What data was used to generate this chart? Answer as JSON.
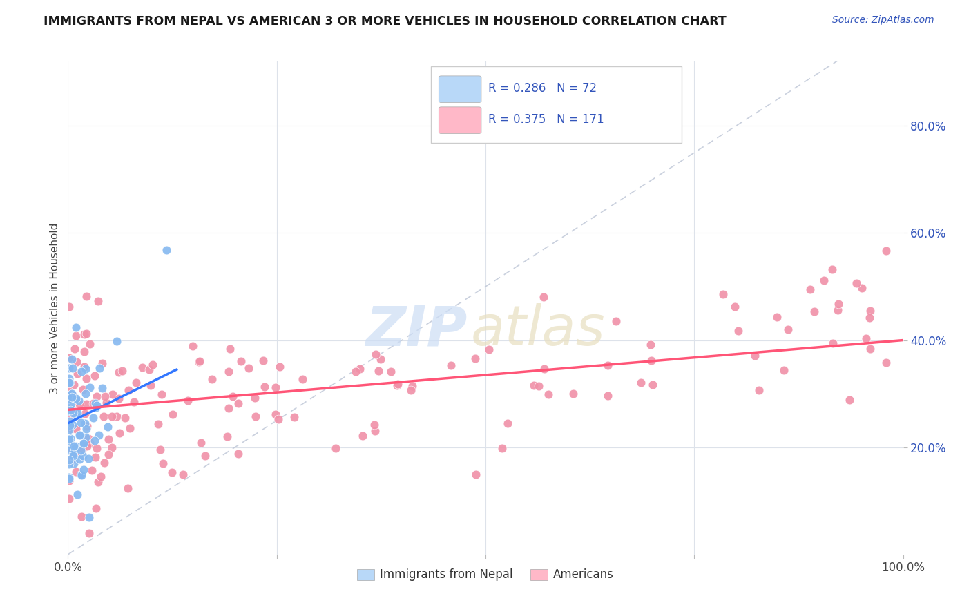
{
  "title": "IMMIGRANTS FROM NEPAL VS AMERICAN 3 OR MORE VEHICLES IN HOUSEHOLD CORRELATION CHART",
  "source": "Source: ZipAtlas.com",
  "ylabel": "3 or more Vehicles in Household",
  "nepal_R": 0.286,
  "nepal_N": 72,
  "american_R": 0.375,
  "american_N": 171,
  "nepal_scatter_color": "#85b8f0",
  "american_scatter_color": "#f090a8",
  "nepal_legend_color": "#b8d8f8",
  "american_legend_color": "#ffb8c8",
  "nepal_line_color": "#3377ff",
  "american_line_color": "#ff5577",
  "diagonal_color": "#c0c8d8",
  "background_color": "#ffffff",
  "grid_color": "#dde2ea",
  "title_color": "#1a1a1a",
  "axis_label_color": "#3355bb",
  "ytick_color": "#3355bb",
  "xtick_color": "#444444",
  "watermark_zip_color": "#ccddf5",
  "watermark_atlas_color": "#e8dfc0",
  "xlim": [
    0.0,
    1.0
  ],
  "ylim": [
    0.0,
    0.92
  ],
  "yticks": [
    0.2,
    0.4,
    0.6,
    0.8
  ],
  "ytick_labels": [
    "20.0%",
    "40.0%",
    "60.0%",
    "80.0%"
  ],
  "xticks": [
    0.0,
    0.25,
    0.5,
    0.75,
    1.0
  ],
  "xtick_labels": [
    "0.0%",
    "",
    "",
    "",
    "100.0%"
  ],
  "nepal_seed": 12,
  "american_seed": 7
}
